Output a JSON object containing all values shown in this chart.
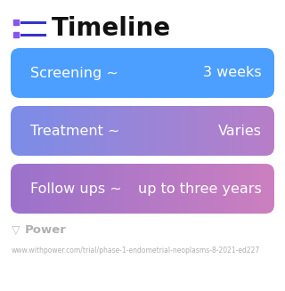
{
  "title": "Timeline",
  "background_color": "#ffffff",
  "rows": [
    {
      "label_left": "Screening ~",
      "label_right": "3 weeks",
      "gradient_start": "#4d9fff",
      "gradient_end": "#4d9fff"
    },
    {
      "label_left": "Treatment ~",
      "label_right": "Varies",
      "gradient_start": "#7b8de8",
      "gradient_end": "#b87ec8"
    },
    {
      "label_left": "Follow ups ~",
      "label_right": "up to three years",
      "gradient_start": "#9b72cc",
      "gradient_end": "#cc80c0"
    }
  ],
  "footer_logo_text": "Power",
  "footer_url": "www.withpower.com/trial/phase-1-endometrial-neoplasms-8-2021-ed227",
  "title_fontsize": 20,
  "row_fontsize": 11.5,
  "footer_fontsize": 5.5,
  "icon_dot_color": "#8855ee",
  "icon_line_color": "#3333cc"
}
